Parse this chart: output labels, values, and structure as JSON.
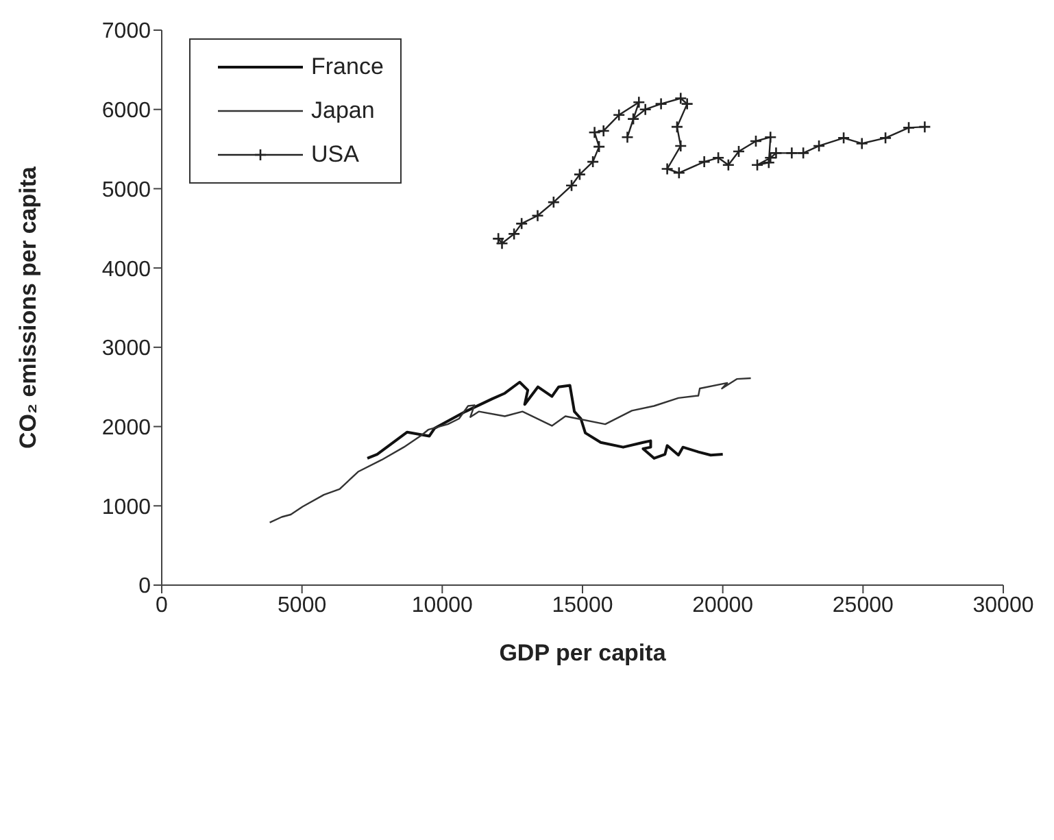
{
  "chart_data": {
    "type": "line",
    "xlabel": "GDP per capita",
    "ylabel": "CO₂ emissions per capita",
    "xlim": [
      0,
      30000
    ],
    "xticks": [
      0,
      5000,
      10000,
      15000,
      20000,
      25000,
      30000
    ],
    "ylim": [
      0,
      7000
    ],
    "yticks": [
      0,
      1000,
      2000,
      3000,
      4000,
      5000,
      6000,
      7000
    ],
    "grid": false,
    "legend": "top left",
    "series": [
      {
        "name": "France",
        "color": "#111111",
        "marker": "none",
        "x": [
          7330,
          7680,
          8750,
          9540,
          9730,
          10830,
          11780,
          12230,
          12760,
          13050,
          12940,
          13410,
          13910,
          14150,
          14550,
          14710,
          14940,
          15100,
          15650,
          16450,
          17160,
          17430,
          17430,
          17160,
          17550,
          17940,
          18020,
          18420,
          18580,
          19130,
          19570,
          20000
        ],
        "values": [
          1600,
          1650,
          1930,
          1880,
          1980,
          2190,
          2350,
          2420,
          2560,
          2460,
          2280,
          2500,
          2380,
          2500,
          2520,
          2190,
          2100,
          1920,
          1800,
          1740,
          1800,
          1820,
          1740,
          1720,
          1600,
          1650,
          1760,
          1640,
          1740,
          1680,
          1640,
          1650
        ]
      },
      {
        "name": "Japan",
        "color": "#333333",
        "marker": "none",
        "x": [
          3850,
          4280,
          4600,
          5020,
          5780,
          6340,
          7000,
          7840,
          8630,
          9260,
          9500,
          10200,
          10600,
          10920,
          11150,
          11000,
          11310,
          12230,
          12860,
          13910,
          14390,
          15810,
          16760,
          17550,
          18420,
          19130,
          19180,
          20160,
          19970,
          20500,
          21000
        ],
        "values": [
          790,
          860,
          890,
          990,
          1140,
          1210,
          1430,
          1580,
          1740,
          1890,
          1960,
          2030,
          2100,
          2260,
          2270,
          2120,
          2190,
          2130,
          2190,
          2010,
          2130,
          2030,
          2200,
          2260,
          2360,
          2390,
          2480,
          2550,
          2480,
          2600,
          2610
        ]
      },
      {
        "name": "USA",
        "color": "#222222",
        "marker": "cross",
        "x": [
          12000,
          12130,
          12560,
          12830,
          13400,
          13970,
          14610,
          14900,
          15370,
          15590,
          15430,
          15750,
          16300,
          17010,
          16600,
          16810,
          17240,
          17800,
          18500,
          18730,
          18370,
          18500,
          18020,
          18440,
          19340,
          19840,
          20200,
          20570,
          21180,
          21700,
          21640,
          21230,
          21700,
          21900,
          22460,
          22870,
          23430,
          24310,
          24960,
          25800,
          26630,
          27200
        ],
        "values": [
          4370,
          4310,
          4430,
          4560,
          4660,
          4830,
          5040,
          5180,
          5340,
          5530,
          5710,
          5730,
          5930,
          6090,
          5650,
          5880,
          6000,
          6070,
          6140,
          6070,
          5780,
          5540,
          5250,
          5200,
          5340,
          5390,
          5300,
          5470,
          5600,
          5650,
          5330,
          5300,
          5390,
          5450,
          5450,
          5450,
          5540,
          5640,
          5570,
          5640,
          5770,
          5780
        ]
      }
    ]
  }
}
